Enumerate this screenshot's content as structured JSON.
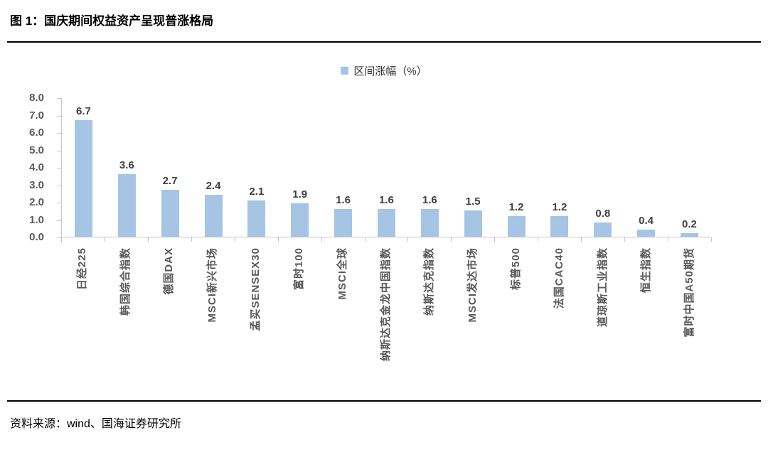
{
  "figure": {
    "title": "图 1：国庆期间权益资产呈现普涨格局",
    "source": "资料来源：wind、国海证券研究所"
  },
  "colors": {
    "bar": "#a6c4e4",
    "axis_line": "#c6c6c6",
    "axis_tick_label": "#595959",
    "value_label": "#3f3f3f",
    "divider": "#000000"
  },
  "chart_data": {
    "type": "bar",
    "legend": "区间涨幅（%）",
    "legend_position": "top-center",
    "grid": false,
    "data_labels": true,
    "ylim": [
      0,
      8
    ],
    "yticks": [
      "8.0",
      "7.0",
      "6.0",
      "5.0",
      "4.0",
      "3.0",
      "2.0",
      "1.0",
      "0.0"
    ],
    "categories": [
      "日经225",
      "韩国综合指数",
      "德国DAX",
      "MSCI新兴市场",
      "孟买SENSEX30",
      "富时100",
      "MSCI全球",
      "纳斯达克金龙中国指数",
      "纳斯达克指数",
      "MSCI发达市场",
      "标普500",
      "法国CAC40",
      "道琼斯工业指数",
      "恒生指数",
      "富时中国A50期货"
    ],
    "values": [
      6.7,
      3.6,
      2.7,
      2.4,
      2.1,
      1.9,
      1.6,
      1.6,
      1.6,
      1.5,
      1.2,
      1.2,
      0.8,
      0.4,
      0.2
    ]
  }
}
